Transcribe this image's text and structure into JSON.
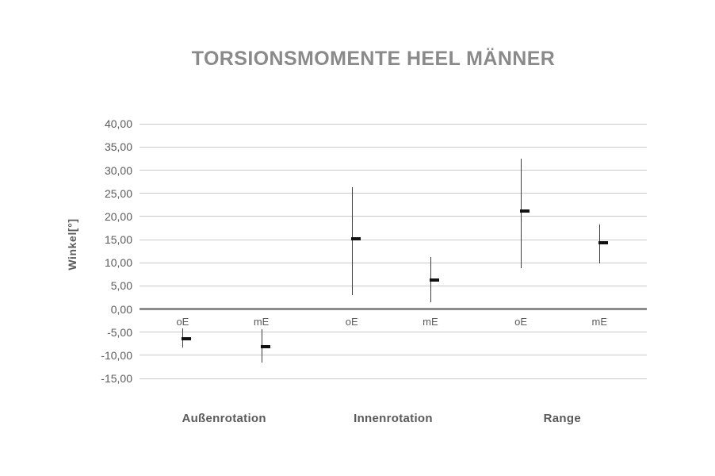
{
  "chart_data": {
    "type": "error-bar",
    "title": "TORSIONSMOMENTE HEEL MÄNNER",
    "ylabel": "Winkel[°]",
    "xlabel": "",
    "grid": true,
    "legend": null,
    "y_axis": {
      "min": -15,
      "max": 40,
      "step": 5,
      "values": [
        40,
        35,
        30,
        25,
        20,
        15,
        10,
        5,
        0,
        -5,
        -10,
        -15
      ],
      "tick_labels": [
        "40,00",
        "35,00",
        "30,00",
        "25,00",
        "20,00",
        "15,00",
        "10,00",
        "5,00",
        "0,00",
        "-5,00",
        "-10,00",
        "-15,00"
      ]
    },
    "groups": [
      {
        "label": "Außenrotation",
        "points": [
          {
            "label": "oE",
            "mean": -6.4,
            "high": -4.2,
            "low": -8.3
          },
          {
            "label": "mE",
            "mean": -8.2,
            "high": -4.4,
            "low": -11.5
          }
        ]
      },
      {
        "label": "Innenrotation",
        "points": [
          {
            "label": "oE",
            "mean": 15.1,
            "high": 26.4,
            "low": 3.0
          },
          {
            "label": "mE",
            "mean": 6.3,
            "high": 11.3,
            "low": 1.4
          }
        ]
      },
      {
        "label": "Range",
        "points": [
          {
            "label": "oE",
            "mean": 21.1,
            "high": 32.5,
            "low": 8.9
          },
          {
            "label": "mE",
            "mean": 14.3,
            "high": 18.2,
            "low": 9.9
          }
        ]
      }
    ],
    "colors": {
      "title": "#8a8a8a",
      "axis_text": "#5a5a5a",
      "gridline": "#c9c9c9",
      "zero_line": "#8c8c8c",
      "whisker": "#3d3d3d",
      "mean_marker": "#111111",
      "background": "#ffffff"
    }
  }
}
